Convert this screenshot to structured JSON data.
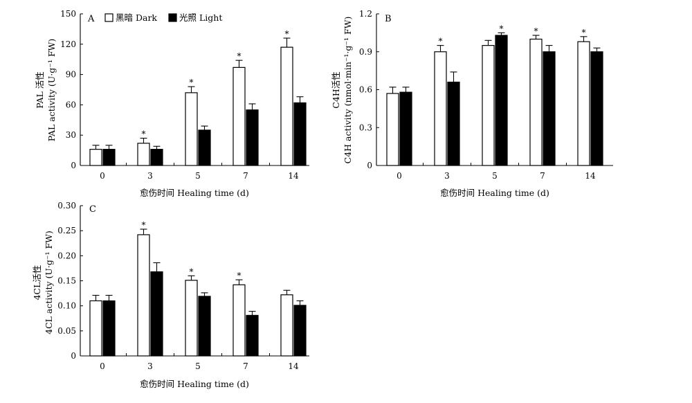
{
  "legend": {
    "dark_label": "黑暗 Dark",
    "light_label": "光照 Light"
  },
  "chart_data": [
    {
      "panel": "A",
      "type": "bar",
      "categories": [
        "0",
        "3",
        "5",
        "7",
        "14"
      ],
      "xlabel": "愈伤时间 Healing time (d)",
      "ylabel_cn": "PAL 活性",
      "ylabel_en": "PAL activity (U·g⁻¹ FW)",
      "ylim": [
        0,
        150
      ],
      "yticks": [
        "0",
        "30",
        "60",
        "90",
        "120",
        "150"
      ],
      "series": [
        {
          "name": "黑暗 Dark",
          "color": "#ffffff",
          "values": [
            16,
            22,
            72,
            97,
            117
          ],
          "errors": [
            4,
            5,
            6,
            7,
            9
          ]
        },
        {
          "name": "光照 Light",
          "color": "#000000",
          "values": [
            16,
            16,
            35,
            55,
            62
          ],
          "errors": [
            4,
            3,
            4,
            6,
            6
          ]
        }
      ],
      "significance": [
        false,
        true,
        true,
        true,
        true
      ],
      "significance_mark": "*",
      "legend_position": "top"
    },
    {
      "panel": "B",
      "type": "bar",
      "categories": [
        "0",
        "3",
        "5",
        "7",
        "14"
      ],
      "xlabel": "愈伤时间 Healing time (d)",
      "ylabel_cn": "C4H活性",
      "ylabel_en": "C4H activity (nmol·min⁻¹·g⁻¹ FW)",
      "ylim": [
        0,
        1.2
      ],
      "yticks": [
        "0",
        "0.3",
        "0.6",
        "0.9",
        "1.2"
      ],
      "series": [
        {
          "name": "黑暗 Dark",
          "color": "#ffffff",
          "values": [
            0.57,
            0.9,
            0.95,
            1.0,
            0.98
          ],
          "errors": [
            0.05,
            0.05,
            0.04,
            0.03,
            0.04
          ]
        },
        {
          "name": "光照 Light",
          "color": "#000000",
          "values": [
            0.58,
            0.66,
            1.03,
            0.9,
            0.9
          ],
          "errors": [
            0.04,
            0.08,
            0.02,
            0.05,
            0.03
          ]
        }
      ],
      "significance": [
        false,
        true,
        false,
        true,
        true
      ],
      "significance_light": [
        false,
        false,
        true,
        false,
        false
      ],
      "significance_mark": "*"
    },
    {
      "panel": "C",
      "type": "bar",
      "categories": [
        "0",
        "3",
        "5",
        "7",
        "14"
      ],
      "xlabel": "愈伤时间 Healing time (d)",
      "ylabel_cn": "4CL活性",
      "ylabel_en": "4CL activity (U·g⁻¹ FW)",
      "ylim": [
        0,
        0.3
      ],
      "yticks": [
        "0",
        "0.05",
        "0.10",
        "0.15",
        "0.20",
        "0.25",
        "0.30"
      ],
      "series": [
        {
          "name": "黑暗 Dark",
          "color": "#ffffff",
          "values": [
            0.11,
            0.242,
            0.151,
            0.142,
            0.122
          ],
          "errors": [
            0.011,
            0.011,
            0.009,
            0.01,
            0.009
          ]
        },
        {
          "name": "光照 Light",
          "color": "#000000",
          "values": [
            0.11,
            0.168,
            0.119,
            0.081,
            0.101
          ],
          "errors": [
            0.011,
            0.018,
            0.007,
            0.008,
            0.009
          ]
        }
      ],
      "significance": [
        false,
        true,
        true,
        true,
        false
      ],
      "significance_mark": "*"
    }
  ]
}
